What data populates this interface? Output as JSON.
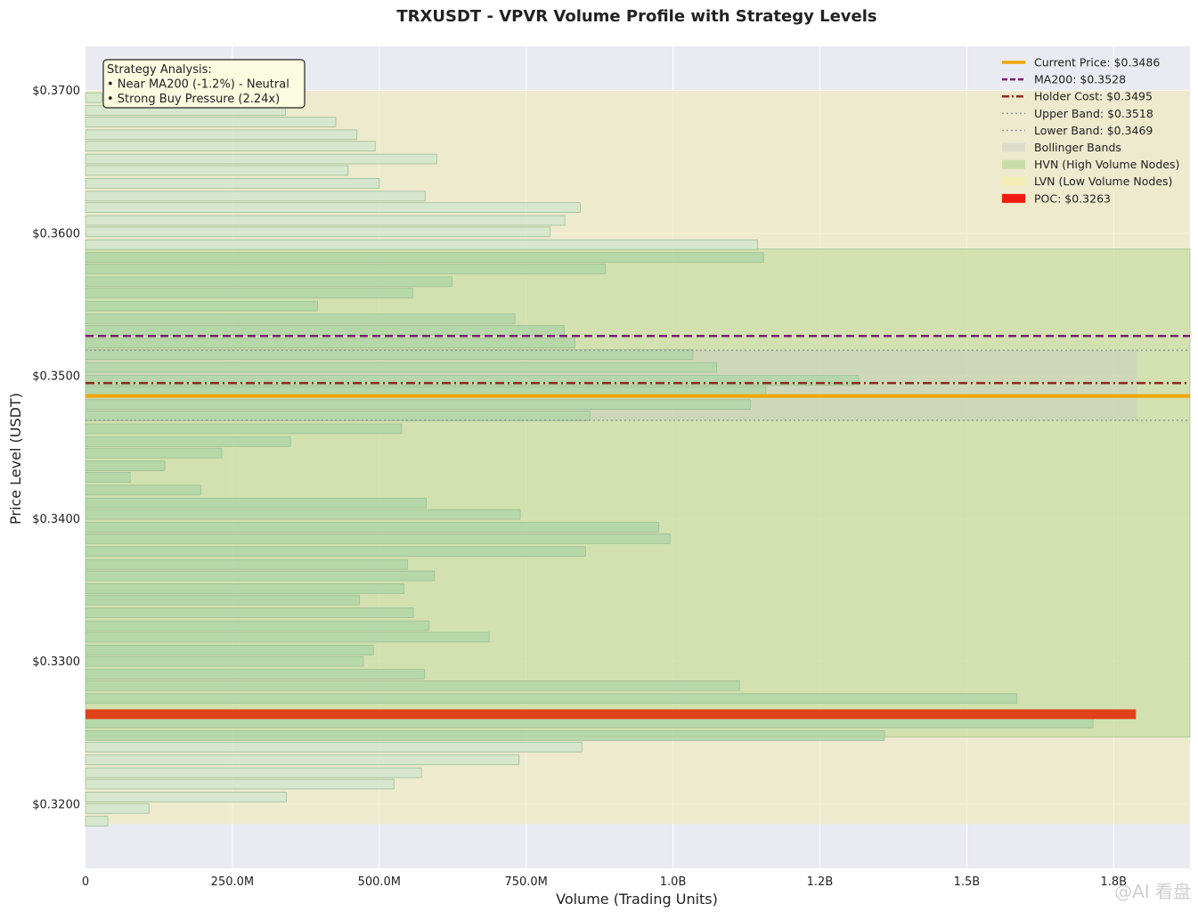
{
  "chart_data": {
    "type": "bar",
    "orientation": "horizontal",
    "title": "TRXUSDT - VPVR Volume Profile with Strategy Levels",
    "xlabel": "Volume (Trading Units)",
    "ylabel": "Price Level (USDT)",
    "xlim": [
      0,
      1880000000
    ],
    "ylim": [
      0.3155,
      0.3731
    ],
    "x_ticks": [
      {
        "value": 0,
        "label": "0"
      },
      {
        "value": 250000000,
        "label": "250.0M"
      },
      {
        "value": 500000000,
        "label": "500.0M"
      },
      {
        "value": 750000000,
        "label": "750.0M"
      },
      {
        "value": 1000000000,
        "label": "1.0B"
      },
      {
        "value": 1250000000,
        "label": "1.2B"
      },
      {
        "value": 1500000000,
        "label": "1.5B"
      },
      {
        "value": 1750000000,
        "label": "1.8B"
      }
    ],
    "y_ticks": [
      {
        "value": 0.32,
        "label": "$0.3200"
      },
      {
        "value": 0.33,
        "label": "$0.3300"
      },
      {
        "value": 0.34,
        "label": "$0.3400"
      },
      {
        "value": 0.35,
        "label": "$0.3500"
      },
      {
        "value": 0.36,
        "label": "$0.3600"
      },
      {
        "value": 0.37,
        "label": "$0.3700"
      }
    ],
    "grid": true,
    "legend_position": "top-right",
    "colors": {
      "plot_bg": "#eaeaf2",
      "lvn_zone": "#f0eab0",
      "hvn_zone": "#bcd996",
      "bollinger": "#c8c8c8",
      "bar_light": "#d2e6cc",
      "bar_hvn": "#b2d6a8",
      "bar_edge": "#9cbf98",
      "poc": "#e0401a",
      "current_price": "#f0a500",
      "ma200": "#7b1b78",
      "holder_cost": "#8b2a1a",
      "bands": "#999999"
    },
    "levels": {
      "current_price": 0.3486,
      "ma200": 0.3528,
      "holder_cost": 0.3495,
      "upper_band": 0.3518,
      "lower_band": 0.3469,
      "poc": 0.3263
    },
    "hvn_zone": [
      0.3247,
      0.3589
    ],
    "lvn_zone": [
      0.3186,
      0.37
    ],
    "bar_height": 0.00068,
    "bars": [
      {
        "price": 0.3188,
        "volume": 38000000
      },
      {
        "price": 0.3197,
        "volume": 108000000
      },
      {
        "price": 0.3205,
        "volume": 342000000
      },
      {
        "price": 0.3214,
        "volume": 525000000
      },
      {
        "price": 0.3222,
        "volume": 572000000
      },
      {
        "price": 0.3231,
        "volume": 738000000
      },
      {
        "price": 0.324,
        "volume": 845000000
      },
      {
        "price": 0.3248,
        "volume": 1360000000
      },
      {
        "price": 0.3257,
        "volume": 1715000000
      },
      {
        "price": 0.3274,
        "volume": 1585000000
      },
      {
        "price": 0.3283,
        "volume": 1113000000
      },
      {
        "price": 0.3291,
        "volume": 577000000
      },
      {
        "price": 0.33,
        "volume": 473000000
      },
      {
        "price": 0.3308,
        "volume": 490000000
      },
      {
        "price": 0.3317,
        "volume": 687000000
      },
      {
        "price": 0.3325,
        "volume": 585000000
      },
      {
        "price": 0.3334,
        "volume": 558000000
      },
      {
        "price": 0.3343,
        "volume": 466000000
      },
      {
        "price": 0.3351,
        "volume": 542000000
      },
      {
        "price": 0.336,
        "volume": 594000000
      },
      {
        "price": 0.3368,
        "volume": 548000000
      },
      {
        "price": 0.3377,
        "volume": 851000000
      },
      {
        "price": 0.3386,
        "volume": 995000000
      },
      {
        "price": 0.3394,
        "volume": 976000000
      },
      {
        "price": 0.3403,
        "volume": 740000000
      },
      {
        "price": 0.3411,
        "volume": 580000000
      },
      {
        "price": 0.342,
        "volume": 196000000
      },
      {
        "price": 0.3429,
        "volume": 76000000
      },
      {
        "price": 0.3437,
        "volume": 135000000
      },
      {
        "price": 0.3446,
        "volume": 232000000
      },
      {
        "price": 0.3454,
        "volume": 349000000
      },
      {
        "price": 0.3463,
        "volume": 538000000
      },
      {
        "price": 0.3472,
        "volume": 859000000
      },
      {
        "price": 0.348,
        "volume": 1132000000
      },
      {
        "price": 0.3489,
        "volume": 1158000000
      },
      {
        "price": 0.3497,
        "volume": 1316000000
      },
      {
        "price": 0.3506,
        "volume": 1074000000
      },
      {
        "price": 0.3515,
        "volume": 1034000000
      },
      {
        "price": 0.3523,
        "volume": 833000000
      },
      {
        "price": 0.3532,
        "volume": 815000000
      },
      {
        "price": 0.354,
        "volume": 731000000
      },
      {
        "price": 0.3549,
        "volume": 395000000
      },
      {
        "price": 0.3558,
        "volume": 557000000
      },
      {
        "price": 0.3566,
        "volume": 624000000
      },
      {
        "price": 0.3575,
        "volume": 885000000
      },
      {
        "price": 0.3583,
        "volume": 1154000000
      },
      {
        "price": 0.3592,
        "volume": 1144000000
      },
      {
        "price": 0.3601,
        "volume": 791000000
      },
      {
        "price": 0.3609,
        "volume": 816000000
      },
      {
        "price": 0.3618,
        "volume": 842000000
      },
      {
        "price": 0.3626,
        "volume": 578000000
      },
      {
        "price": 0.3635,
        "volume": 500000000
      },
      {
        "price": 0.3644,
        "volume": 447000000
      },
      {
        "price": 0.3652,
        "volume": 598000000
      },
      {
        "price": 0.3661,
        "volume": 493000000
      },
      {
        "price": 0.3669,
        "volume": 462000000
      },
      {
        "price": 0.3678,
        "volume": 426000000
      },
      {
        "price": 0.3686,
        "volume": 340000000
      },
      {
        "price": 0.3695,
        "volume": 28000000
      }
    ],
    "poc_bar": {
      "price": 0.3263,
      "volume": 1788000000
    },
    "bollinger_band_volume": 1790000000,
    "legend": [
      {
        "label": "Current Price: $0.3486",
        "style": "solid-thick",
        "color": "#f0a500"
      },
      {
        "label": "MA200: $0.3528",
        "style": "dashed",
        "color": "#7b1b78"
      },
      {
        "label": "Holder Cost: $0.3495",
        "style": "dashdot",
        "color": "#8b2a1a"
      },
      {
        "label": "Upper Band: $0.3518",
        "style": "dotted",
        "color": "#999999"
      },
      {
        "label": "Lower Band: $0.3469",
        "style": "dotted",
        "color": "#999999"
      },
      {
        "label": "Bollinger Bands",
        "style": "patch",
        "color": "#dcdccc"
      },
      {
        "label": "HVN (High Volume Nodes)",
        "style": "patch",
        "color": "#c4dca4"
      },
      {
        "label": "LVN (Low Volume Nodes)",
        "style": "patch",
        "color": "#f4ecb0"
      },
      {
        "label": "POC: $0.3263",
        "style": "patch",
        "color": "#f01a10"
      }
    ],
    "annotation": {
      "lines": [
        "Strategy Analysis:",
        "• Near MA200 (-1.2%) - Neutral",
        "• Strong Buy Pressure (2.24x)"
      ]
    }
  },
  "watermark": "@AI 看盘"
}
